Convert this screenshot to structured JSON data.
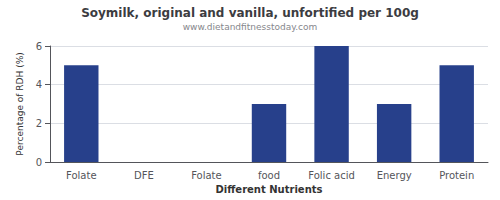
{
  "chart_data": {
    "type": "bar",
    "title": "Soymilk, original and vanilla, unfortified per 100g",
    "subtitle": "www.dietandfitnesstoday.com",
    "xlabel": "Different Nutrients",
    "ylabel": "Percentage of RDH (%)",
    "categories": [
      "Folate",
      "DFE",
      "Folate",
      "food",
      "Folic acid",
      "Energy",
      "Protein"
    ],
    "values": [
      5.0,
      0.0,
      0.0,
      3.0,
      6.0,
      3.0,
      5.0
    ],
    "color": "#27408B",
    "ylim": [
      0,
      6
    ],
    "yticks": [
      0,
      2,
      4,
      6
    ],
    "grid": true
  }
}
